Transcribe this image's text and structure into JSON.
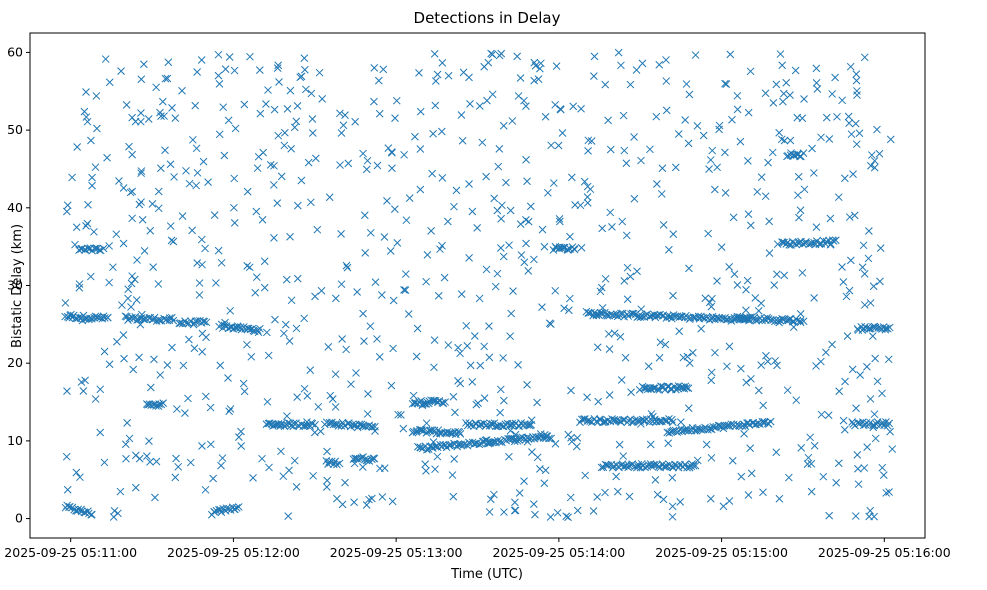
{
  "chart_data": {
    "type": "scatter",
    "title": "Detections in Delay",
    "xlabel": "Time (UTC)",
    "ylabel": "Bistatic Delay (km)",
    "marker": "x",
    "color": "#1f77b4",
    "grid": false,
    "x_unit": "seconds since 2025-09-25 05:11:00 UTC",
    "xlim": [
      -15,
      315
    ],
    "ylim": [
      -2.5,
      62.5
    ],
    "x_ticks": [
      {
        "value": 0,
        "label": "2025-09-25 05:11:00"
      },
      {
        "value": 60,
        "label": "2025-09-25 05:12:00"
      },
      {
        "value": 120,
        "label": "2025-09-25 05:13:00"
      },
      {
        "value": 180,
        "label": "2025-09-25 05:14:00"
      },
      {
        "value": 240,
        "label": "2025-09-25 05:15:00"
      },
      {
        "value": 300,
        "label": "2025-09-25 05:16:00"
      }
    ],
    "y_ticks": [
      {
        "value": 0,
        "label": "0"
      },
      {
        "value": 10,
        "label": "10"
      },
      {
        "value": 20,
        "label": "20"
      },
      {
        "value": 30,
        "label": "30"
      },
      {
        "value": 40,
        "label": "40"
      },
      {
        "value": 50,
        "label": "50"
      },
      {
        "value": 60,
        "label": "60"
      }
    ],
    "tracks": [
      {
        "x_start": -2,
        "x_end": 8,
        "y_start": 1.5,
        "y_end": 0.6
      },
      {
        "x_start": -2,
        "x_end": 14,
        "y_start": 26,
        "y_end": 25.8
      },
      {
        "x_start": 3,
        "x_end": 12,
        "y_start": 34.6,
        "y_end": 34.6
      },
      {
        "x_start": 20,
        "x_end": 38,
        "y_start": 25.8,
        "y_end": 25.6
      },
      {
        "x_start": 28,
        "x_end": 34,
        "y_start": 14.5,
        "y_end": 14.8
      },
      {
        "x_start": 40,
        "x_end": 50,
        "y_start": 25.2,
        "y_end": 25.2
      },
      {
        "x_start": 52,
        "x_end": 62,
        "y_start": 0.7,
        "y_end": 1.5
      },
      {
        "x_start": 55,
        "x_end": 70,
        "y_start": 24.8,
        "y_end": 24.2
      },
      {
        "x_start": 72,
        "x_end": 90,
        "y_start": 12.1,
        "y_end": 12.1
      },
      {
        "x_start": 94,
        "x_end": 112,
        "y_start": 12.3,
        "y_end": 11.8
      },
      {
        "x_start": 94,
        "x_end": 99,
        "y_start": 7.2,
        "y_end": 7.2
      },
      {
        "x_start": 104,
        "x_end": 112,
        "y_start": 7.8,
        "y_end": 7.6
      },
      {
        "x_start": 126,
        "x_end": 138,
        "y_start": 15.0,
        "y_end": 15.0
      },
      {
        "x_start": 126,
        "x_end": 144,
        "y_start": 11.3,
        "y_end": 11.0
      },
      {
        "x_start": 128,
        "x_end": 176,
        "y_start": 9.0,
        "y_end": 10.6
      },
      {
        "x_start": 146,
        "x_end": 170,
        "y_start": 12.1,
        "y_end": 12.1
      },
      {
        "x_start": 178,
        "x_end": 186,
        "y_start": 34.8,
        "y_end": 34.8
      },
      {
        "x_start": 190,
        "x_end": 250,
        "y_start": 26.4,
        "y_end": 25.6
      },
      {
        "x_start": 188,
        "x_end": 222,
        "y_start": 12.6,
        "y_end": 12.6
      },
      {
        "x_start": 196,
        "x_end": 230,
        "y_start": 6.8,
        "y_end": 6.8
      },
      {
        "x_start": 210,
        "x_end": 228,
        "y_start": 16.8,
        "y_end": 16.8
      },
      {
        "x_start": 220,
        "x_end": 258,
        "y_start": 11.2,
        "y_end": 12.4
      },
      {
        "x_start": 245,
        "x_end": 270,
        "y_start": 25.8,
        "y_end": 25.5
      },
      {
        "x_start": 262,
        "x_end": 282,
        "y_start": 35.4,
        "y_end": 35.6
      },
      {
        "x_start": 264,
        "x_end": 270,
        "y_start": 46.8,
        "y_end": 46.8
      },
      {
        "x_start": 288,
        "x_end": 302,
        "y_start": 12.2,
        "y_end": 12.2
      },
      {
        "x_start": 290,
        "x_end": 302,
        "y_start": 24.5,
        "y_end": 24.5
      }
    ],
    "scatter_background": {
      "x_range": [
        -2,
        303
      ],
      "y_range": [
        0,
        60
      ],
      "count": 900
    }
  }
}
